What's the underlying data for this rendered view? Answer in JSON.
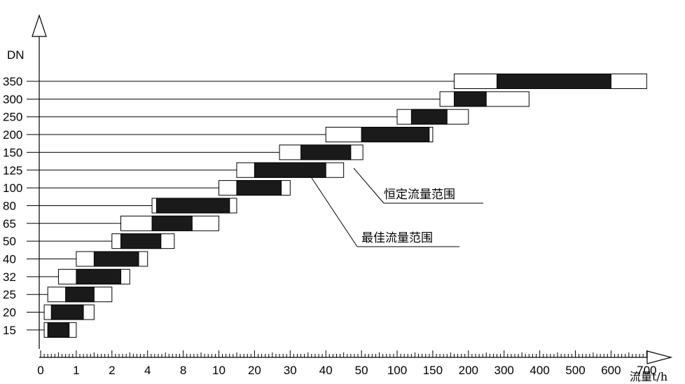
{
  "chart_data": {
    "type": "bar",
    "ylabel": "DN",
    "xlabel": "流量t/h",
    "x_tick_labels": [
      "0",
      "1",
      "2",
      "4",
      "8",
      "10",
      "20",
      "30",
      "40",
      "50",
      "100",
      "150",
      "200",
      "300",
      "400",
      "500",
      "600",
      "700"
    ],
    "categories": [
      "15",
      "20",
      "25",
      "32",
      "40",
      "50",
      "65",
      "80",
      "100",
      "125",
      "150",
      "200",
      "250",
      "300",
      "350"
    ],
    "series": [
      {
        "name": "恒定流量范围",
        "values": [
          [
            0.1,
            1.0
          ],
          [
            0.1,
            1.5
          ],
          [
            0.2,
            2.0
          ],
          [
            0.5,
            3.0
          ],
          [
            1.0,
            4.0
          ],
          [
            2.0,
            7.0
          ],
          [
            2.5,
            10.0
          ],
          [
            4.5,
            15.0
          ],
          [
            10.0,
            30.0
          ],
          [
            15.0,
            45.0
          ],
          [
            27.0,
            52.0
          ],
          [
            40.0,
            150.0
          ],
          [
            100.0,
            200.0
          ],
          [
            160.0,
            370.0
          ],
          [
            180.0,
            700.0
          ]
        ]
      },
      {
        "name": "最佳流量范围",
        "values": [
          [
            0.2,
            0.8
          ],
          [
            0.3,
            1.2
          ],
          [
            0.7,
            1.5
          ],
          [
            1.0,
            2.5
          ],
          [
            1.5,
            3.5
          ],
          [
            2.5,
            5.5
          ],
          [
            4.5,
            8.5
          ],
          [
            5.0,
            13.0
          ],
          [
            15.0,
            27.5
          ],
          [
            20.0,
            40.0
          ],
          [
            33.0,
            47.0
          ],
          [
            50.0,
            145.0
          ],
          [
            120.0,
            170.0
          ],
          [
            180.0,
            250.0
          ],
          [
            280.0,
            600.0
          ]
        ]
      }
    ],
    "annotations": [
      "恒定流量范围",
      "最佳流量范围"
    ],
    "colors": {
      "constant_fill": "#ffffff",
      "optimal_fill": "#1a1a1a",
      "stroke": "#000000"
    },
    "grid": false
  }
}
